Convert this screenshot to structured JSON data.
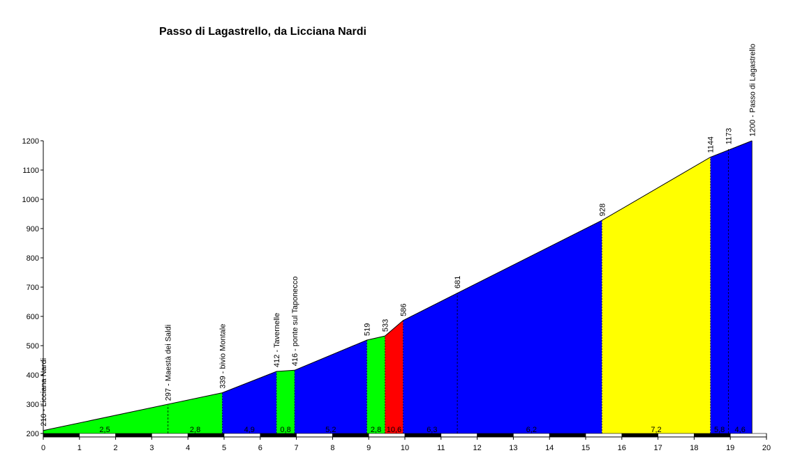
{
  "chart_data": {
    "type": "area",
    "title": "Passo di Lagastrello, da Licciana Nardi",
    "xlabel": "",
    "ylabel": "",
    "xlim": [
      0,
      20
    ],
    "ylim": [
      200,
      1200
    ],
    "x_ticks": [
      0,
      1,
      2,
      3,
      4,
      5,
      6,
      7,
      8,
      9,
      10,
      11,
      12,
      13,
      14,
      15,
      16,
      17,
      18,
      19,
      20
    ],
    "y_ticks": [
      200,
      300,
      400,
      500,
      600,
      700,
      800,
      900,
      1000,
      1100,
      1200
    ],
    "grid": false,
    "segments": [
      {
        "start_km": 0.0,
        "end_km": 4.95,
        "start_alt": 210,
        "end_alt": 339,
        "gradient": "2,5 | 2,8",
        "color": "#00ff00"
      },
      {
        "start_km": 4.95,
        "end_km": 6.45,
        "start_alt": 339,
        "end_alt": 412,
        "gradient": "4,9",
        "color": "#0000ff"
      },
      {
        "start_km": 6.45,
        "end_km": 6.95,
        "start_alt": 412,
        "end_alt": 416,
        "gradient": "0,8",
        "color": "#00ff00"
      },
      {
        "start_km": 6.95,
        "end_km": 8.95,
        "start_alt": 416,
        "end_alt": 519,
        "gradient": "5,2",
        "color": "#0000ff"
      },
      {
        "start_km": 8.95,
        "end_km": 9.45,
        "start_alt": 519,
        "end_alt": 533,
        "gradient": "2,8",
        "color": "#00ff00"
      },
      {
        "start_km": 9.45,
        "end_km": 9.95,
        "start_alt": 533,
        "end_alt": 586,
        "gradient": "10,6",
        "color": "#ff0000"
      },
      {
        "start_km": 9.95,
        "end_km": 15.45,
        "start_alt": 586,
        "end_alt": 928,
        "gradient": "6,3 | 6,2",
        "color": "#0000ff"
      },
      {
        "start_km": 15.45,
        "end_km": 18.45,
        "start_alt": 928,
        "end_alt": 1144,
        "gradient": "7,2",
        "color": "#ffff00"
      },
      {
        "start_km": 18.45,
        "end_km": 19.6,
        "start_alt": 1144,
        "end_alt": 1200,
        "gradient": "5,8 | 4,6",
        "color": "#0000ff"
      }
    ],
    "gradient_labels": [
      {
        "km": 1.7,
        "text": "2,5"
      },
      {
        "km": 4.2,
        "text": "2,8"
      },
      {
        "km": 5.7,
        "text": "4,9"
      },
      {
        "km": 6.7,
        "text": "0,8"
      },
      {
        "km": 7.95,
        "text": "5,2"
      },
      {
        "km": 9.2,
        "text": "2,8"
      },
      {
        "km": 9.7,
        "text": "10,6"
      },
      {
        "km": 10.75,
        "text": "6,3"
      },
      {
        "km": 13.5,
        "text": "6,2"
      },
      {
        "km": 16.95,
        "text": "7,2"
      },
      {
        "km": 18.7,
        "text": "5,8"
      },
      {
        "km": 19.27,
        "text": "4,6"
      }
    ],
    "annotations": [
      {
        "km": 0.0,
        "alt": 210,
        "text": "210 - Licciana Nardi",
        "marker": false
      },
      {
        "km": 3.45,
        "alt": 297,
        "text": "297 - Maestà dei Saldi",
        "marker": true
      },
      {
        "km": 4.95,
        "alt": 339,
        "text": "339 - bivio Montale",
        "marker": false
      },
      {
        "km": 6.45,
        "alt": 412,
        "text": "412 - Tavernelle",
        "marker": false
      },
      {
        "km": 6.95,
        "alt": 416,
        "text": "416 - ponte sul Taponecco",
        "marker": false
      },
      {
        "km": 8.95,
        "alt": 519,
        "text": "519",
        "marker": false
      },
      {
        "km": 9.45,
        "alt": 533,
        "text": "533",
        "marker": false
      },
      {
        "km": 9.95,
        "alt": 586,
        "text": "586",
        "marker": false
      },
      {
        "km": 11.45,
        "alt": 681,
        "text": "681",
        "marker": true
      },
      {
        "km": 15.45,
        "alt": 928,
        "text": "928",
        "marker": false
      },
      {
        "km": 18.45,
        "alt": 1144,
        "text": "1144",
        "marker": false
      },
      {
        "km": 18.95,
        "alt": 1173,
        "text": "1173",
        "marker": true
      },
      {
        "km": 19.6,
        "alt": 1200,
        "text": "1200 - Passo di Lagastrello",
        "marker": false
      }
    ],
    "route_end_km": 19.6
  }
}
